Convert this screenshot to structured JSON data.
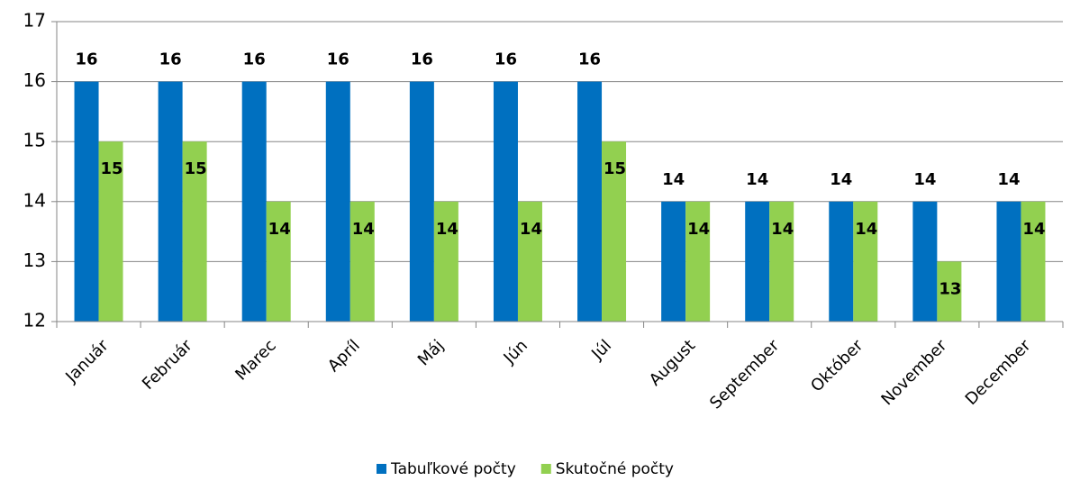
{
  "chart_data": {
    "type": "bar",
    "categories": [
      "Január",
      "Február",
      "Marec",
      "Apríl",
      "Máj",
      "Jún",
      "Júl",
      "August",
      "September",
      "Október",
      "November",
      "December"
    ],
    "series": [
      {
        "name": "Tabuľkové počty",
        "color": "#0070c0",
        "values": [
          16,
          16,
          16,
          16,
          16,
          16,
          16,
          14,
          14,
          14,
          14,
          14
        ]
      },
      {
        "name": "Skutočné počty",
        "color": "#92d050",
        "values": [
          15,
          15,
          14,
          14,
          14,
          14,
          15,
          14,
          14,
          14,
          13,
          14
        ]
      }
    ],
    "ylim": [
      12,
      17
    ],
    "yticks": [
      12,
      13,
      14,
      15,
      16,
      17
    ],
    "grid": true,
    "legend": "bottom"
  }
}
